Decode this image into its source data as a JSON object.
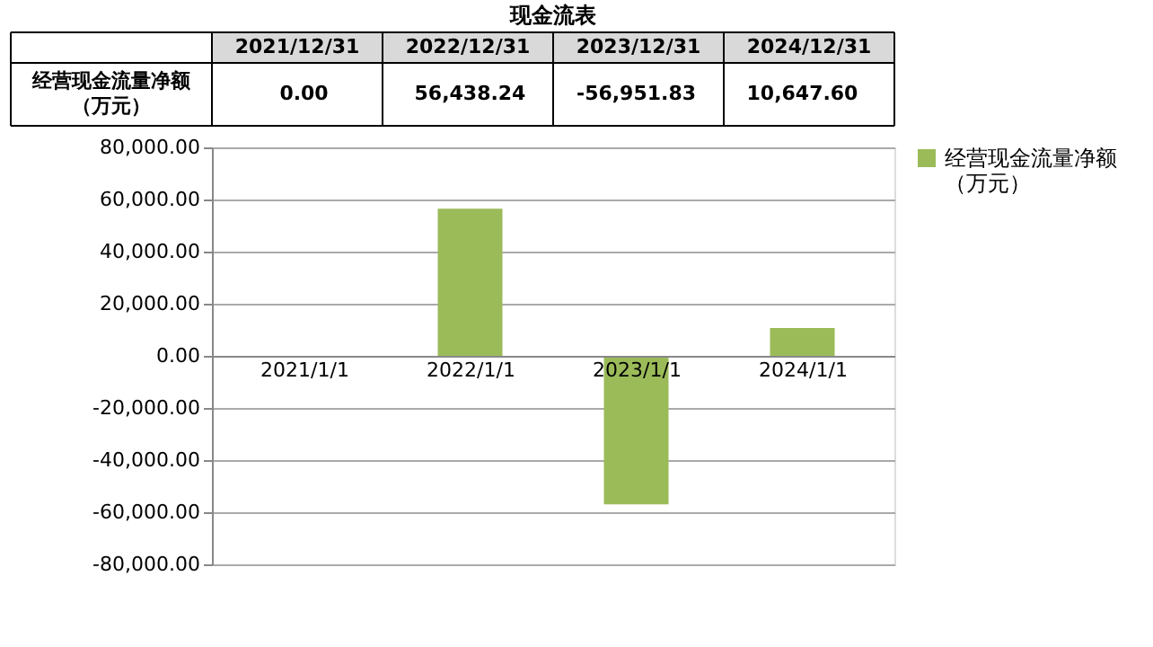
{
  "chart_data": {
    "type": "bar",
    "title": "现金流表",
    "annotations": [
      "2021/12/31",
      "2022/12/31",
      "2023/12/31",
      "2024/12/31"
    ],
    "categories": [
      "2021/1/1",
      "2022/1/1",
      "2023/1/1",
      "2024/1/1"
    ],
    "series": [
      {
        "name": "经营现金流量净额（万元）",
        "color": "#9bbb59",
        "values": [
          0,
          56438.24,
          -56951.83,
          10647.6
        ],
        "value_labels": [
          "0.00",
          "56,438.24",
          "-56,951.83",
          "10,647.60"
        ]
      }
    ],
    "ylim": [
      -80000,
      80000
    ],
    "yticks": [
      {
        "value": -80000,
        "label": "-80,000.00"
      },
      {
        "value": -60000,
        "label": "-60,000.00"
      },
      {
        "value": -40000,
        "label": "-40,000.00"
      },
      {
        "value": -20000,
        "label": "-20,000.00"
      },
      {
        "value": 0,
        "label": "0.00"
      },
      {
        "value": 20000,
        "label": "20,000.00"
      },
      {
        "value": 40000,
        "label": "40,000.00"
      },
      {
        "value": 60000,
        "label": "60,000.00"
      },
      {
        "value": 80000,
        "label": "80,000.00"
      }
    ],
    "grid": "y",
    "legend": "right"
  }
}
